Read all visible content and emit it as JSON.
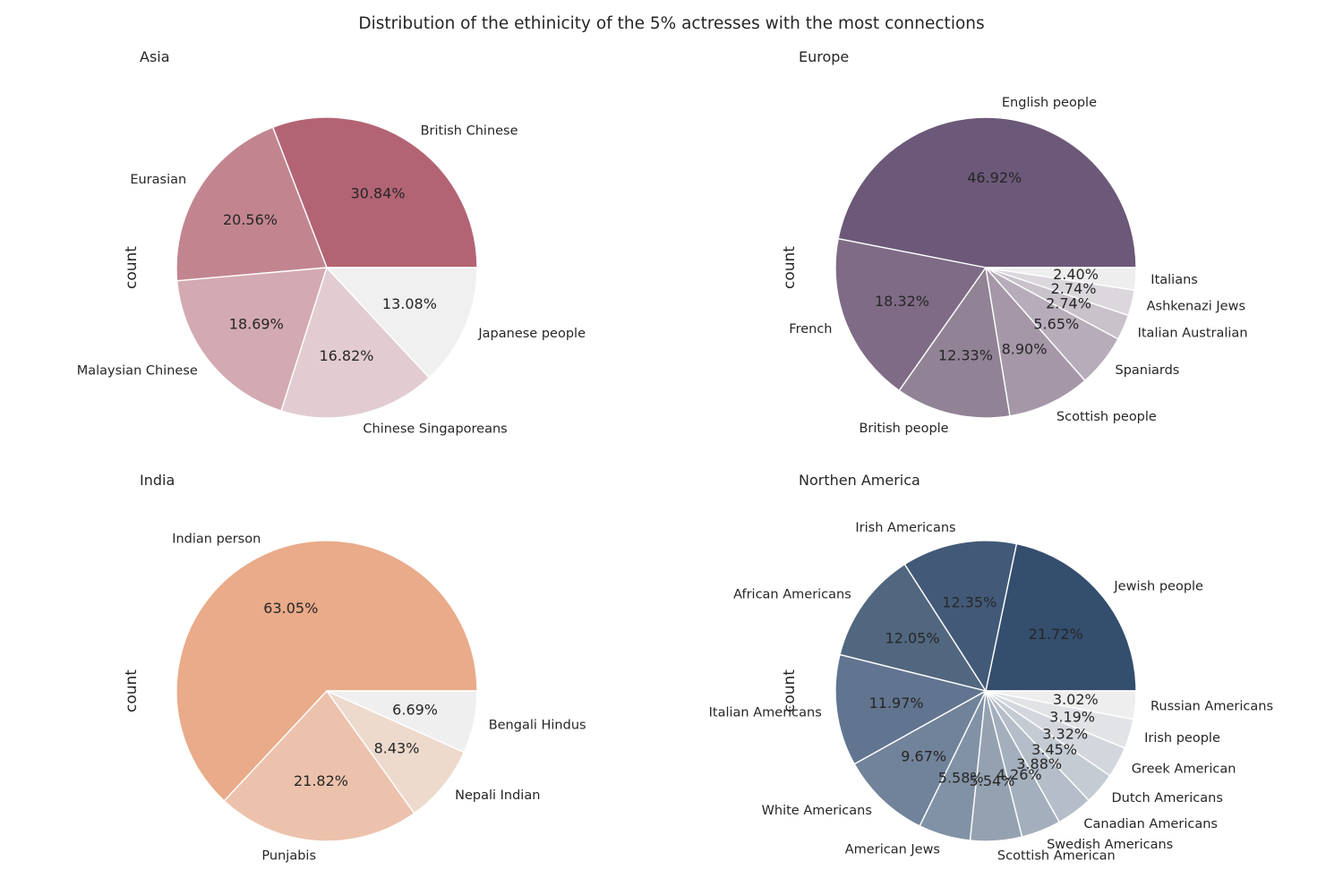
{
  "figure": {
    "title": "Distribution of the ethinicity of the 5% actresses with the most connections"
  },
  "chart_data": [
    {
      "type": "pie",
      "title": "Asia",
      "ylabel": "count",
      "labels": [
        "British Chinese",
        "Eurasian",
        "Malaysian Chinese",
        "Chinese Singaporeans",
        "Japanese people"
      ],
      "values": [
        30.84,
        20.56,
        18.69,
        16.82,
        13.08
      ],
      "pct_labels": [
        "30.84%",
        "20.56%",
        "18.69%",
        "16.82%",
        "13.08%"
      ],
      "colors": [
        "#b36474",
        "#c2858f",
        "#d3aab1",
        "#e2ccd2",
        "#f0f0f0"
      ],
      "start_angle": 0,
      "direction": "counterclockwise"
    },
    {
      "type": "pie",
      "title": "Europe",
      "ylabel": "count",
      "labels": [
        "English people",
        "French",
        "British people",
        "Scottish people",
        "Spaniards",
        "Italian Australian",
        "Ashkenazi Jews",
        "Italians"
      ],
      "values": [
        46.92,
        18.32,
        12.33,
        8.9,
        5.65,
        2.74,
        2.74,
        2.4
      ],
      "pct_labels": [
        "46.92%",
        "18.32%",
        "12.33%",
        "8.90%",
        "5.65%",
        "2.74%",
        "2.74%",
        "2.40%"
      ],
      "colors": [
        "#6c5878",
        "#7f6b86",
        "#928296",
        "#a597a8",
        "#b7adba",
        "#c9c2cb",
        "#dbd7dd",
        "#eeeeee"
      ],
      "start_angle": 0,
      "direction": "counterclockwise"
    },
    {
      "type": "pie",
      "title": "India",
      "ylabel": "count",
      "labels": [
        "Indian person",
        "Punjabis",
        "Nepali Indian",
        "Bengali Hindus"
      ],
      "values": [
        63.05,
        21.82,
        8.43,
        6.69
      ],
      "pct_labels": [
        "63.05%",
        "21.82%",
        "8.43%",
        "6.69%"
      ],
      "colors": [
        "#e9ab89",
        "#ecc2ac",
        "#eddacd",
        "#f0efef"
      ],
      "start_angle": 0,
      "direction": "counterclockwise"
    },
    {
      "type": "pie",
      "title": "Northen America",
      "ylabel": "count",
      "labels": [
        "Jewish people",
        "Irish Americans",
        "African Americans",
        "Italian Americans",
        "White Americans",
        "American Jews",
        "Scottish American",
        "Swedish Americans",
        "Canadian Americans",
        "Dutch Americans",
        "Greek American",
        "Irish people",
        "Russian Americans"
      ],
      "values": [
        21.72,
        12.35,
        12.05,
        11.97,
        9.67,
        5.58,
        5.54,
        4.26,
        3.88,
        3.45,
        3.32,
        3.19,
        3.02
      ],
      "pct_labels": [
        "21.72%",
        "12.35%",
        "12.05%",
        "11.97%",
        "9.67%",
        "5.58%",
        "5.54%",
        "4.26%",
        "3.88%",
        "3.45%",
        "3.32%",
        "3.19%",
        "3.02%"
      ],
      "colors": [
        "#344e6e",
        "#425a78",
        "#51677f",
        "#617590",
        "#71839a",
        "#8292a6",
        "#94a1b0",
        "#a4afbd",
        "#b4bdc8",
        "#c4cbd3",
        "#d3d7dd",
        "#e1e3e6",
        "#eeeeee"
      ],
      "start_angle": 0,
      "direction": "counterclockwise"
    }
  ]
}
